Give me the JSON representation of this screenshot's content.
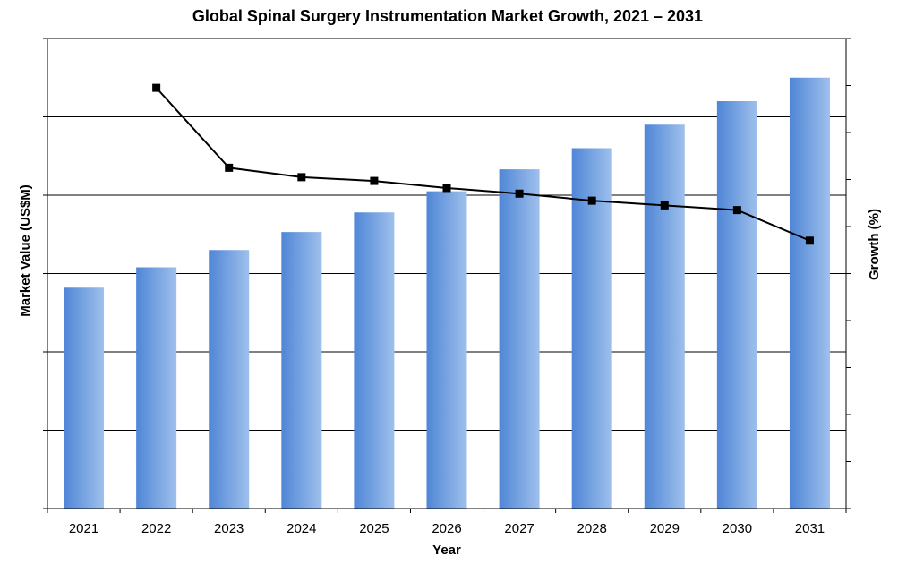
{
  "chart_data": {
    "type": "bar",
    "title": "Global Spinal Surgery Instrumentation Market Growth, 2021 – 2031",
    "xlabel": "Year",
    "ylabel": "Market Value (US$M)",
    "y2label": "Growth (%)",
    "categories": [
      "2021",
      "2022",
      "2023",
      "2024",
      "2025",
      "2026",
      "2027",
      "2028",
      "2029",
      "2030",
      "2031"
    ],
    "ylim": [
      0,
      6
    ],
    "y2lim": [
      0,
      10
    ],
    "grid": true,
    "series": [
      {
        "type": "bar",
        "axis": "left",
        "color": "#5b8fd9",
        "values": [
          2.82,
          3.08,
          3.3,
          3.53,
          3.78,
          4.05,
          4.33,
          4.6,
          4.9,
          5.2,
          5.5
        ]
      },
      {
        "type": "line",
        "axis": "right",
        "color": "#000000",
        "marker": "square",
        "values": [
          null,
          8.95,
          7.25,
          7.05,
          6.97,
          6.82,
          6.7,
          6.55,
          6.45,
          6.35,
          5.7
        ]
      }
    ]
  }
}
